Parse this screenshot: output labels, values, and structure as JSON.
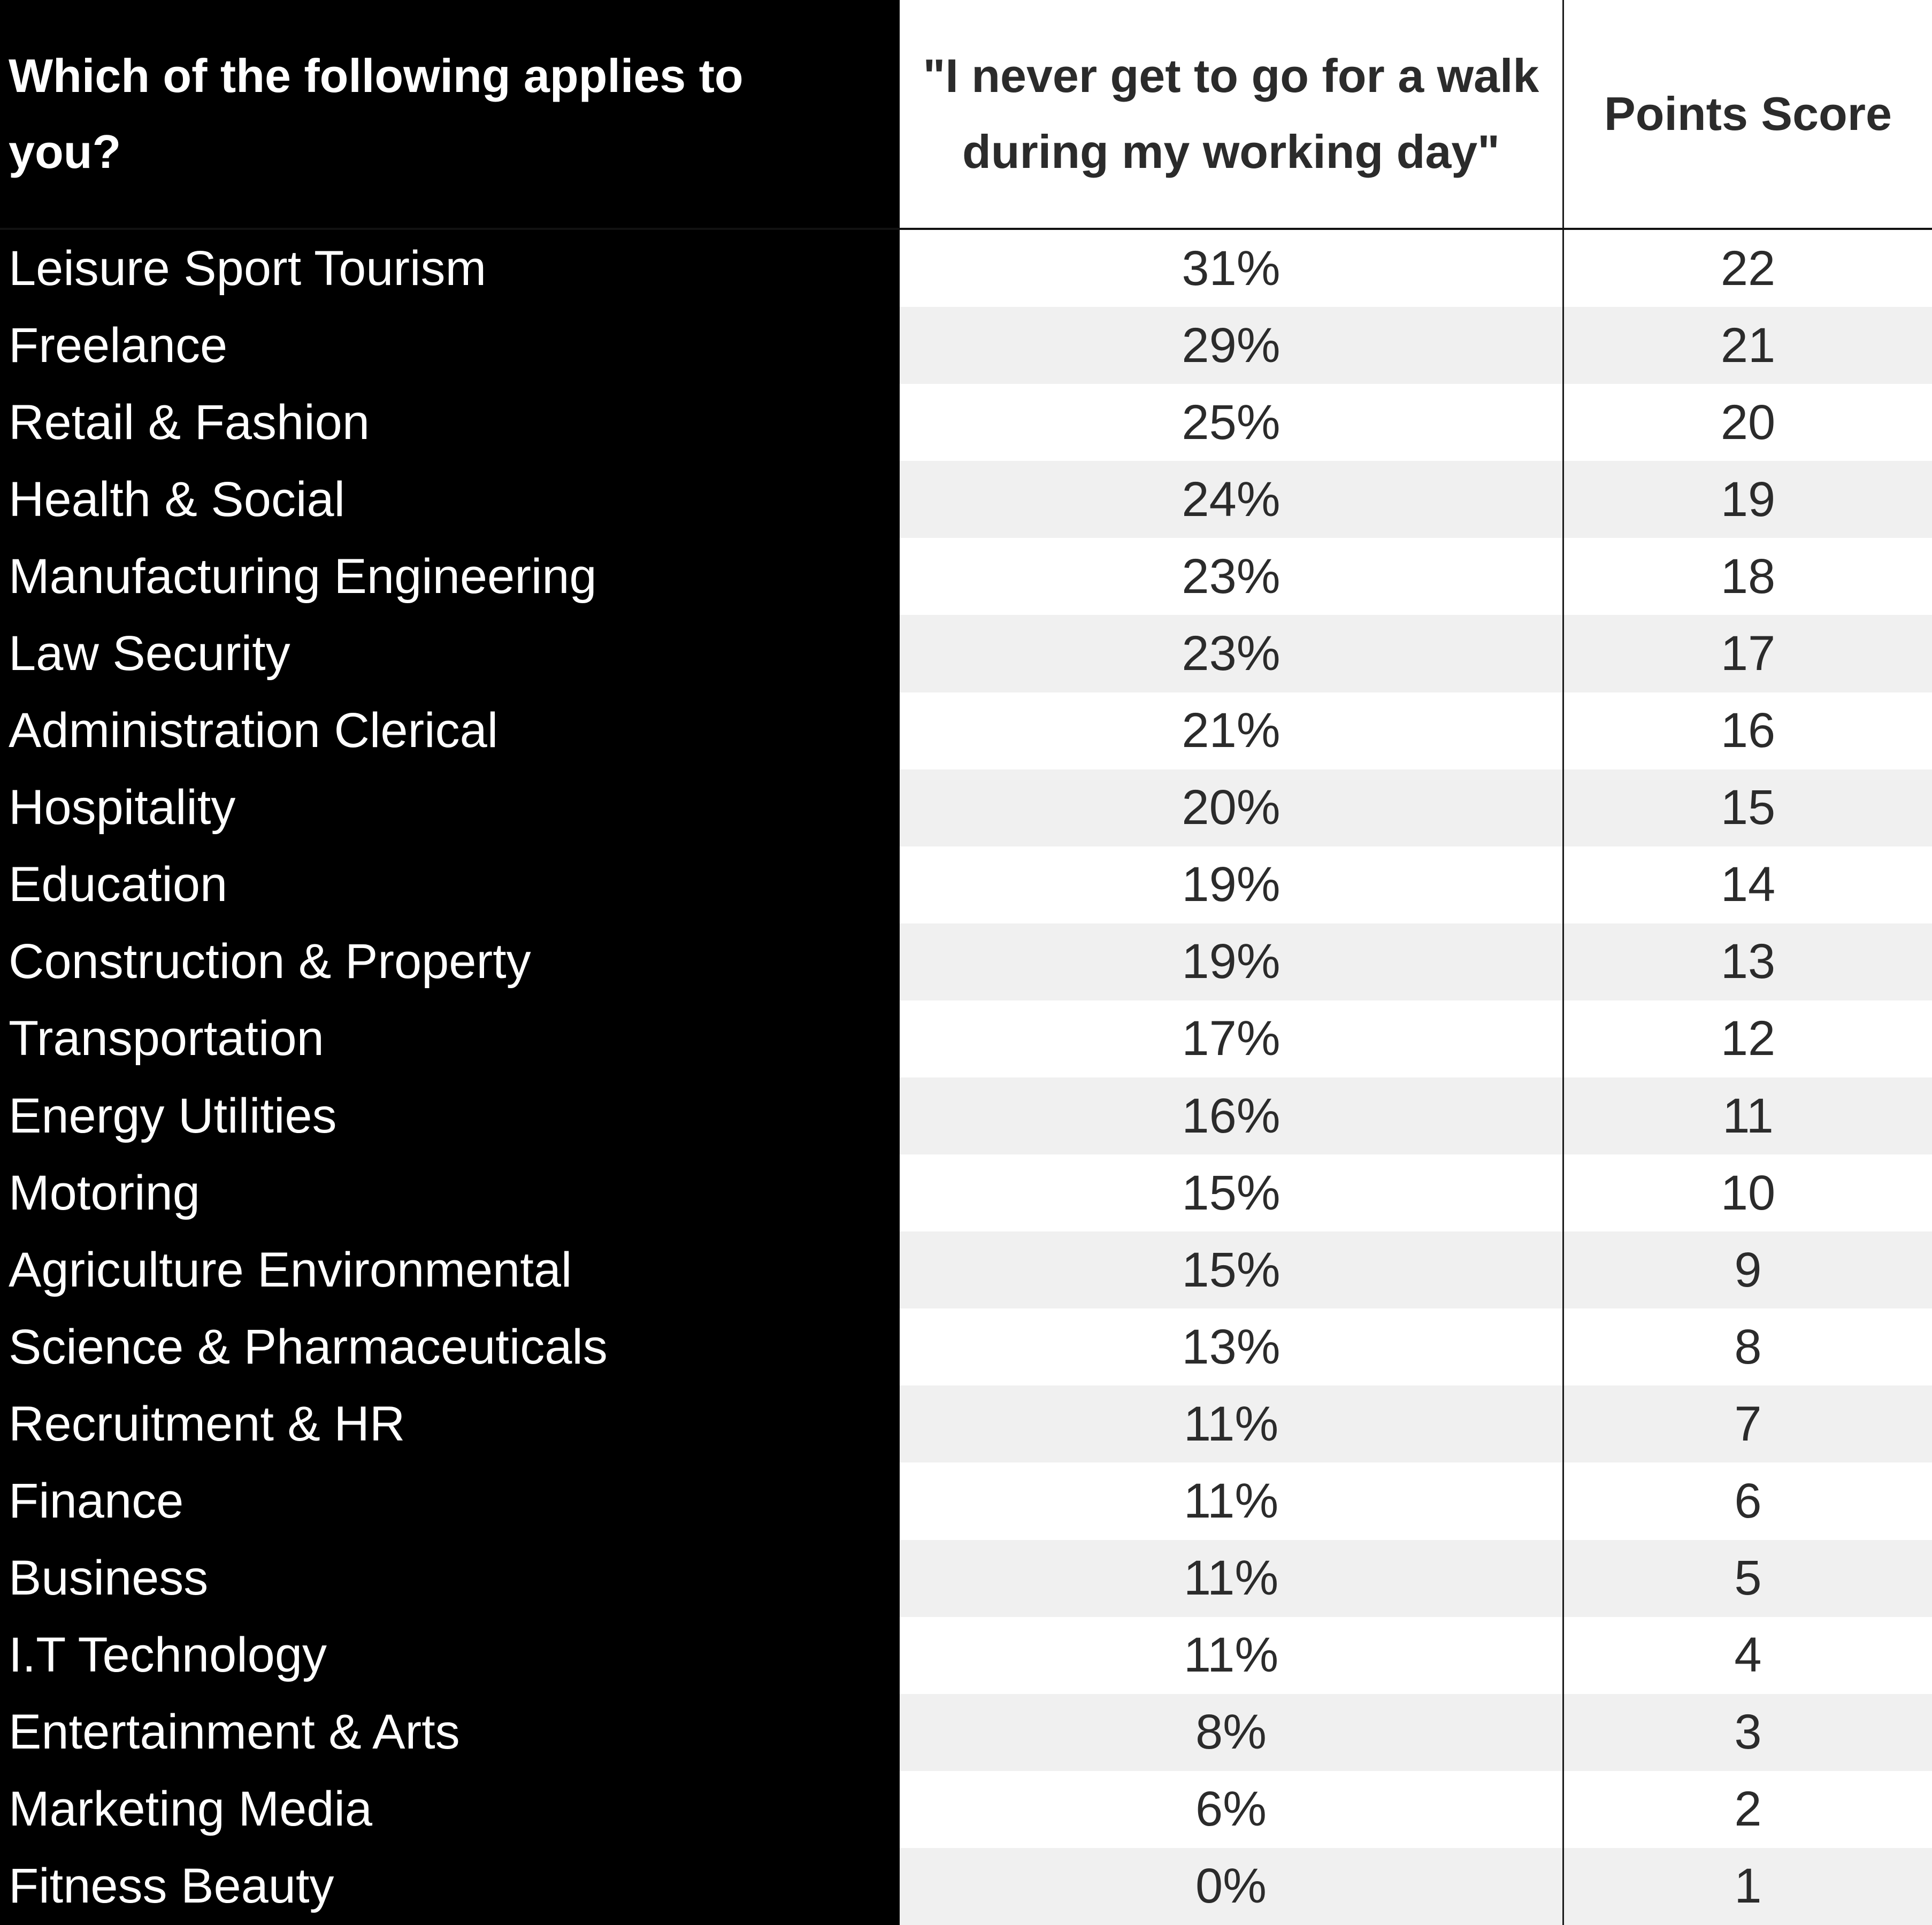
{
  "chart_data": {
    "type": "table",
    "columns": [
      "Which of the following applies to you?",
      "\"I never get to go for a walk during my working day\"",
      "Points Score"
    ],
    "rows": [
      {
        "category": "Leisure Sport Tourism",
        "percent": "31%",
        "score": "22"
      },
      {
        "category": "Freelance",
        "percent": "29%",
        "score": "21"
      },
      {
        "category": "Retail & Fashion",
        "percent": "25%",
        "score": "20"
      },
      {
        "category": "Health & Social",
        "percent": "24%",
        "score": "19"
      },
      {
        "category": "Manufacturing Engineering",
        "percent": "23%",
        "score": "18"
      },
      {
        "category": "Law Security",
        "percent": "23%",
        "score": "17"
      },
      {
        "category": "Administration Clerical",
        "percent": "21%",
        "score": "16"
      },
      {
        "category": "Hospitality",
        "percent": "20%",
        "score": "15"
      },
      {
        "category": "Education",
        "percent": "19%",
        "score": "14"
      },
      {
        "category": "Construction & Property",
        "percent": "19%",
        "score": "13"
      },
      {
        "category": "Transportation",
        "percent": "17%",
        "score": "12"
      },
      {
        "category": "Energy Utilities",
        "percent": "16%",
        "score": "11"
      },
      {
        "category": "Motoring",
        "percent": "15%",
        "score": "10"
      },
      {
        "category": "Agriculture Environmental",
        "percent": "15%",
        "score": "9"
      },
      {
        "category": "Science & Pharmaceuticals",
        "percent": "13%",
        "score": "8"
      },
      {
        "category": "Recruitment & HR",
        "percent": "11%",
        "score": "7"
      },
      {
        "category": "Finance",
        "percent": "11%",
        "score": "6"
      },
      {
        "category": "Business",
        "percent": "11%",
        "score": "5"
      },
      {
        "category": "I.T Technology",
        "percent": "11%",
        "score": "4"
      },
      {
        "category": "Entertainment & Arts",
        "percent": "8%",
        "score": "3"
      },
      {
        "category": "Marketing Media",
        "percent": "6%",
        "score": "2"
      },
      {
        "category": "Fitness Beauty",
        "percent": "0%",
        "score": "1"
      }
    ],
    "colors": {
      "first_column_background": "#000000",
      "first_column_text": "#ffffff",
      "stripe": "#f0f0f0",
      "value_text": "#2b2b2b"
    }
  }
}
